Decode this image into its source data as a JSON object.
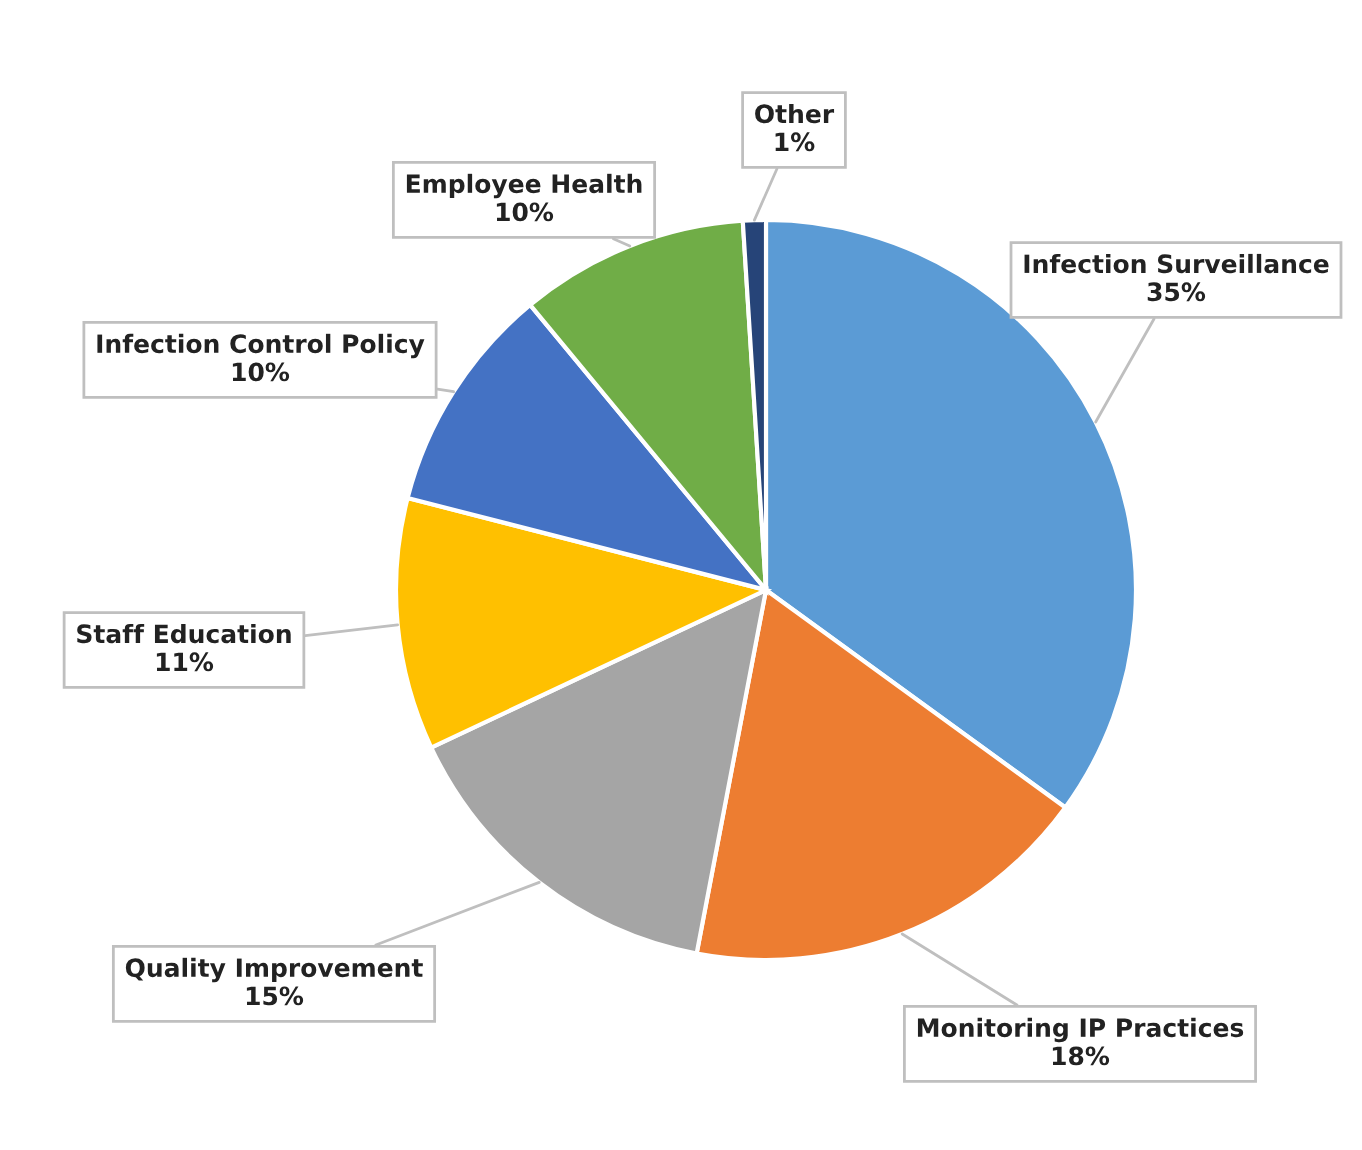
{
  "chart_data": {
    "type": "pie",
    "categories": [
      "Infection Surveillance",
      "Monitoring IP Practices",
      "Quality Improvement",
      "Staff Education",
      "Infection Control Policy",
      "Employee Health",
      "Other"
    ],
    "values": [
      35,
      18,
      15,
      11,
      10,
      10,
      1
    ],
    "value_labels": [
      "35%",
      "18%",
      "15%",
      "11%",
      "10%",
      "10%",
      "1%"
    ],
    "colors": [
      "#5b9bd5",
      "#ed7d31",
      "#a5a5a5",
      "#ffc000",
      "#4472c4",
      "#70ad47",
      "#264478"
    ],
    "legend": false
  }
}
